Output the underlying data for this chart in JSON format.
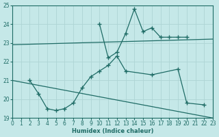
{
  "xlabel": "Humidex (Indice chaleur)",
  "xlim": [
    0,
    23
  ],
  "ylim": [
    19,
    25
  ],
  "yticks": [
    19,
    20,
    21,
    22,
    23,
    24,
    25
  ],
  "xticks": [
    0,
    1,
    2,
    3,
    4,
    5,
    6,
    7,
    8,
    9,
    10,
    11,
    12,
    13,
    14,
    15,
    16,
    17,
    18,
    19,
    20,
    21,
    22,
    23
  ],
  "background_color": "#c5e8e8",
  "grid_color": "#aed4d4",
  "line_color": "#1e6b65",
  "trend_line1": {
    "x": [
      0,
      23
    ],
    "y": [
      22.9,
      23.2
    ]
  },
  "trend_line2": {
    "x": [
      0,
      23
    ],
    "y": [
      21.0,
      19.0
    ]
  },
  "curve1": {
    "x": [
      2,
      3,
      4,
      5,
      6,
      7,
      8,
      9,
      10,
      11,
      12,
      13,
      16,
      19,
      20,
      22
    ],
    "y": [
      21.0,
      20.3,
      19.5,
      19.4,
      19.5,
      19.8,
      20.6,
      21.2,
      21.5,
      21.8,
      22.3,
      21.5,
      21.3,
      21.6,
      19.8,
      19.7
    ]
  },
  "curve2": {
    "x": [
      10,
      11,
      12,
      13,
      14,
      15,
      16,
      17,
      18,
      19,
      20
    ],
    "y": [
      24.0,
      22.2,
      22.5,
      23.5,
      24.8,
      23.6,
      23.8,
      23.3,
      23.3,
      23.3,
      23.3
    ]
  },
  "marker": "+"
}
